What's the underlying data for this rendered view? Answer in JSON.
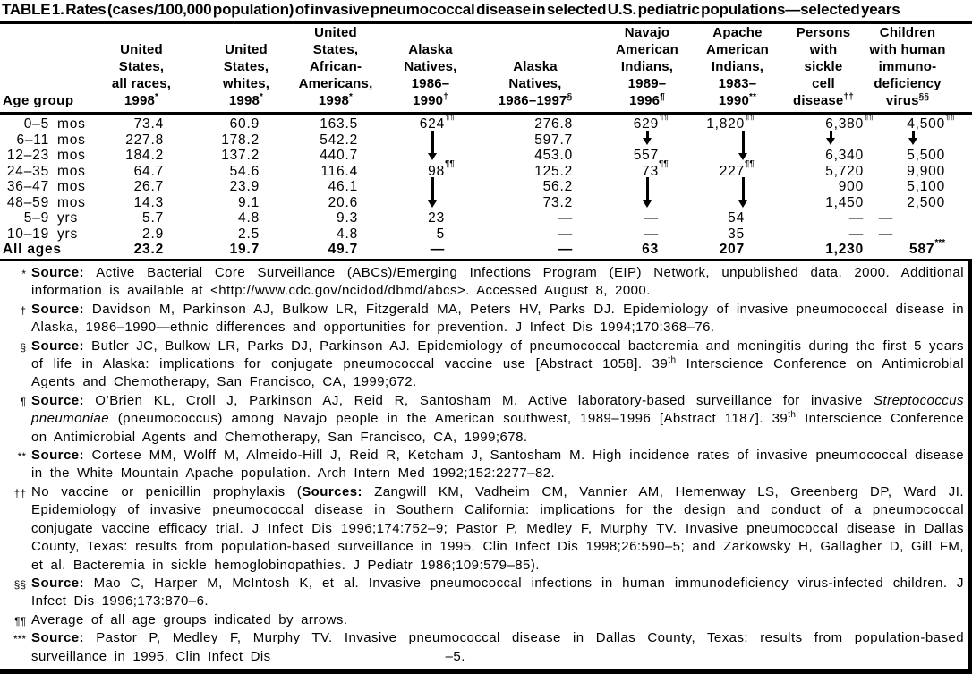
{
  "title": "TABLE 1. Rates (cases/100,000 population) of invasive pneumococcal disease in selected U.S. pediatric populations—selected years",
  "table": {
    "age_group_header": "Age group",
    "columns": [
      {
        "lines": [
          "United",
          "States,",
          "all races,",
          "1998"
        ],
        "sup": "*"
      },
      {
        "lines": [
          "United",
          "States,",
          "whites,",
          "1998"
        ],
        "sup": "*"
      },
      {
        "lines": [
          "United",
          "States,",
          "African-",
          "Americans,",
          "1998"
        ],
        "sup": "*"
      },
      {
        "lines": [
          "Alaska",
          "Natives,",
          "1986–",
          "1990"
        ],
        "sup": "†"
      },
      {
        "lines": [
          "Alaska",
          "Natives,",
          "1986–1997"
        ],
        "sup": "§"
      },
      {
        "lines": [
          "Navajo",
          "American",
          "Indians,",
          "1989–",
          "1996"
        ],
        "sup": "¶"
      },
      {
        "lines": [
          "Apache",
          "American",
          "Indians,",
          "1983–",
          "1990"
        ],
        "sup": "**"
      },
      {
        "lines": [
          "Persons",
          "with",
          "sickle",
          "cell",
          "disease"
        ],
        "sup": "††"
      },
      {
        "lines": [
          "Children",
          "with human",
          "immuno-",
          "deficiency",
          "virus"
        ],
        "sup": "§§"
      }
    ],
    "rows": [
      {
        "range": "0–5",
        "unit": "mos",
        "cells": [
          "73.4",
          "60.9",
          "163.5",
          {
            "v": "624",
            "sup": "¶¶"
          },
          "276.8",
          {
            "v": "629",
            "sup": "¶¶"
          },
          {
            "v": "1,820",
            "sup": "¶¶"
          },
          {
            "v": "6,380",
            "sup": "¶¶"
          },
          {
            "v": "4,500",
            "sup": "¶¶"
          }
        ]
      },
      {
        "range": "6–11",
        "unit": "mos",
        "cells": [
          "227.8",
          "178.2",
          "542.2",
          "",
          "597.7",
          "",
          "",
          "",
          ""
        ]
      },
      {
        "range": "12–23",
        "unit": "mos",
        "cells": [
          "184.2",
          "137.2",
          "440.7",
          "",
          "453.0",
          "557",
          "",
          "6,340",
          "5,500"
        ]
      },
      {
        "range": "24–35",
        "unit": "mos",
        "cells": [
          "64.7",
          "54.6",
          "116.4",
          {
            "v": "98",
            "sup": "¶¶"
          },
          "125.2",
          {
            "v": "73",
            "sup": "¶¶"
          },
          {
            "v": "227",
            "sup": "¶¶"
          },
          "5,720",
          "9,900"
        ]
      },
      {
        "range": "36–47",
        "unit": "mos",
        "cells": [
          "26.7",
          "23.9",
          "46.1",
          "",
          "56.2",
          "",
          "",
          "900",
          "5,100"
        ]
      },
      {
        "range": "48–59",
        "unit": "mos",
        "cells": [
          "14.3",
          "9.1",
          "20.6",
          "",
          "73.2",
          "",
          "",
          "1,450",
          "2,500"
        ]
      },
      {
        "range": "5–9",
        "unit": "yrs",
        "cells": [
          "5.7",
          "4.8",
          "9.3",
          "23",
          "—",
          "—",
          "54",
          "—",
          {
            "v": "—",
            "pad": 58
          }
        ]
      },
      {
        "range": "10–19",
        "unit": "yrs",
        "cells": [
          "2.9",
          "2.5",
          "4.8",
          "5",
          "—",
          "—",
          "35",
          "—",
          {
            "v": "—",
            "pad": 58
          }
        ]
      },
      {
        "label": "All ages",
        "bold": true,
        "cells": [
          "23.2",
          "19.7",
          "49.7",
          "—",
          "—",
          "63",
          "207",
          "1,230",
          {
            "v": "587",
            "sup": "***",
            "inline": true
          }
        ]
      }
    ],
    "arrows": [
      {
        "col": 3,
        "from_row": 0,
        "to_row": 2
      },
      {
        "col": 3,
        "from_row": 3,
        "to_row": 5
      },
      {
        "col": 5,
        "from_row": 0,
        "to_row": 1
      },
      {
        "col": 5,
        "from_row": 3,
        "to_row": 5
      },
      {
        "col": 6,
        "from_row": 0,
        "to_row": 2
      },
      {
        "col": 6,
        "from_row": 3,
        "to_row": 5
      },
      {
        "col": 7,
        "from_row": 0,
        "to_row": 1
      },
      {
        "col": 8,
        "from_row": 0,
        "to_row": 1
      }
    ]
  },
  "footnotes": [
    {
      "marker": "*",
      "segments": [
        {
          "t": "Source: ",
          "s": "b"
        },
        {
          "t": "Active Bacterial Core Surveillance (ABCs)/Emerging Infections Program (EIP) Network, unpublished data, 2000. Additional information is available at <http://www.cdc.gov/ncidod/dbmd/abcs>. Accessed August 8, 2000."
        }
      ]
    },
    {
      "marker": "†",
      "segments": [
        {
          "t": "Source: ",
          "s": "b"
        },
        {
          "t": "Davidson M, Parkinson AJ, Bulkow LR, Fitzgerald MA, Peters HV, Parks DJ. Epidemiology of invasive pneumococcal disease in Alaska, 1986–1990—ethnic differences and opportunities for prevention. J Infect Dis 1994;170:368–76."
        }
      ]
    },
    {
      "marker": "§",
      "segments": [
        {
          "t": "Source: ",
          "s": "b"
        },
        {
          "t": "Butler JC, Bulkow LR, Parks DJ, Parkinson AJ. Epidemiology of pneumococcal bacteremia and meningitis during the first 5 years of life in Alaska: implications for conjugate pneumococcal vaccine use [Abstract 1058]. 39"
        },
        {
          "t": "th",
          "s": "sup"
        },
        {
          "t": " Interscience Conference on Antimicrobial Agents and Chemotherapy, San Francisco, CA, 1999;672."
        }
      ]
    },
    {
      "marker": "¶",
      "segments": [
        {
          "t": "Source: ",
          "s": "b"
        },
        {
          "t": "O’Brien KL, Croll J, Parkinson AJ, Reid R, Santosham M. Active laboratory-based surveillance for invasive "
        },
        {
          "t": "Streptococcus pneumoniae",
          "s": "i"
        },
        {
          "t": " (pneumococcus) among Navajo people in the American southwest, 1989–1996 [Abstract 1187]. 39"
        },
        {
          "t": "th",
          "s": "sup"
        },
        {
          "t": " Interscience Conference on Antimicrobial Agents and Chemotherapy, San Francisco, CA, 1999;678."
        }
      ]
    },
    {
      "marker": "**",
      "segments": [
        {
          "t": "Source: ",
          "s": "b"
        },
        {
          "t": "Cortese MM, Wolff M, Almeido-Hill J, Reid R, Ketcham J, Santosham M. High incidence rates of invasive pneumococcal disease in the White Mountain Apache population. Arch Intern Med 1992;152:2277–82."
        }
      ]
    },
    {
      "marker": "††",
      "segments": [
        {
          "t": "No vaccine or penicillin prophylaxis ("
        },
        {
          "t": "Sources: ",
          "s": "b"
        },
        {
          "t": "Zangwill KM, Vadheim CM, Vannier AM, Hemenway LS, Greenberg DP, Ward JI. Epidemiology of invasive pneumococcal disease in Southern California: implications for the design and conduct of a pneumococcal conjugate vaccine efficacy trial. J Infect Dis 1996;174:752–9; Pastor P, Medley F, Murphy TV. Invasive pneumococcal disease in Dallas County, Texas: results from population-based surveillance in 1995. Clin Infect Dis 1998;26:590–5; and Zarkowsky H, Gallagher D, Gill FM, et al. Bacteremia in sickle hemoglobinopathies. J Pediatr 1986;109:579–85)."
        }
      ]
    },
    {
      "marker": "§§",
      "segments": [
        {
          "t": "Source: ",
          "s": "b"
        },
        {
          "t": "Mao C, Harper M, McIntosh K, et al. Invasive pneumococcal infections in human immunodeficiency virus-infected children. J Infect Dis 1996;173:870–6."
        }
      ]
    },
    {
      "marker": "¶¶",
      "segments": [
        {
          "t": "Average of all age groups indicated by arrows."
        }
      ]
    },
    {
      "marker": "***",
      "segments": [
        {
          "t": "Source: ",
          "s": "b"
        },
        {
          "t": "Pastor P, Medley F, Murphy TV. Invasive pneumococcal disease in Dallas County, Texas: results from population-based surveillance in 1995. Clin Infect Dis"
        },
        {
          "t": "",
          "s": "gap"
        },
        {
          "t": "–5."
        }
      ]
    }
  ]
}
